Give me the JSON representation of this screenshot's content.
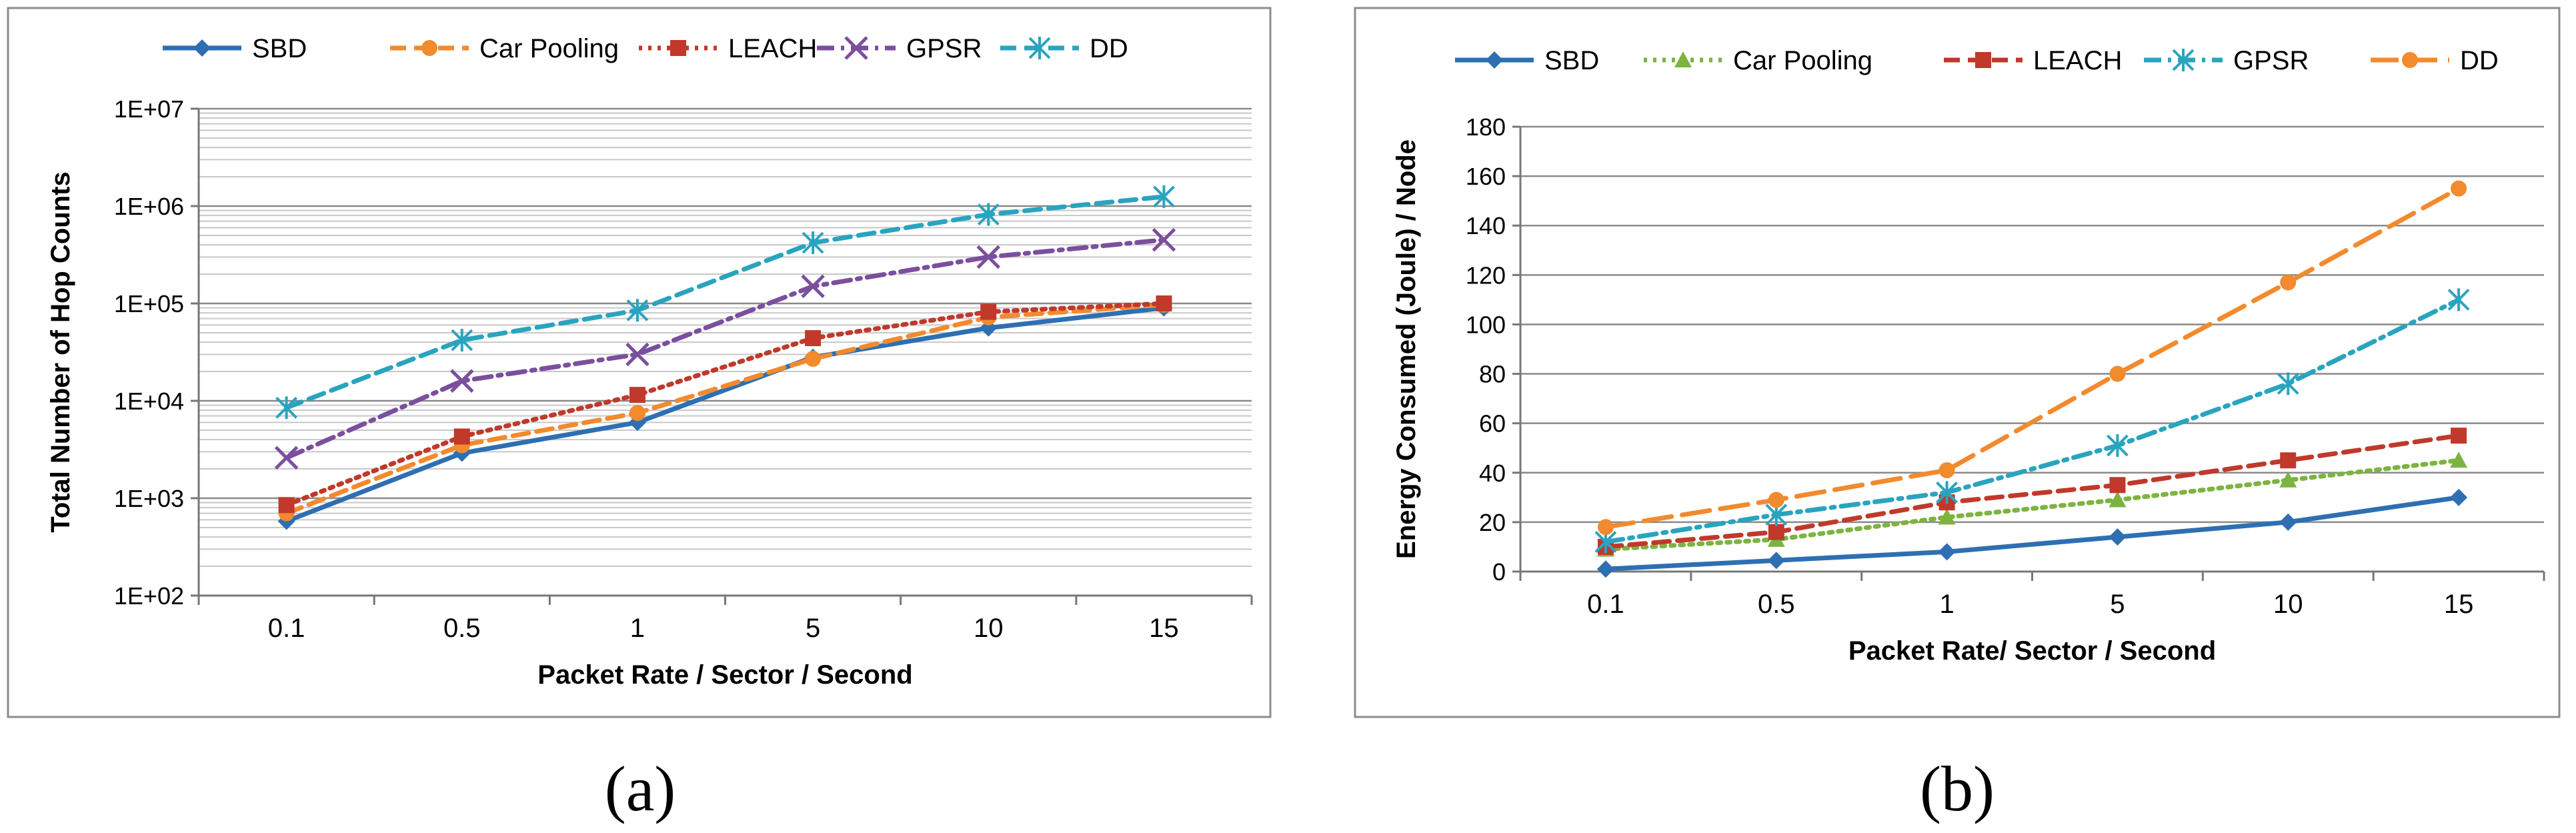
{
  "panels": [
    {
      "label_text": "(a)"
    },
    {
      "label_text": "(b)"
    }
  ],
  "chart_data": [
    {
      "type": "line",
      "xlabel": "Packet Rate / Sector / Second",
      "ylabel": "Total Number of Hop Counts",
      "categories": [
        "0.1",
        "0.5",
        "1",
        "5",
        "10",
        "15"
      ],
      "y_scale": "log",
      "ylim": [
        100,
        10000000
      ],
      "y_ticks": [
        100,
        1000,
        10000,
        100000,
        1000000,
        10000000
      ],
      "y_tick_labels": [
        "1E+02",
        "1E+03",
        "1E+04",
        "1E+05",
        "1E+06",
        "1E+07"
      ],
      "grid": true,
      "minor_grid": true,
      "legend_position": "top",
      "series": [
        {
          "name": "SBD",
          "color": "#2e6fb2",
          "dash": "solid",
          "marker": "diamond",
          "values": [
            580,
            2900,
            6000,
            28000,
            56000,
            90000
          ]
        },
        {
          "name": "Car Pooling",
          "color": "#f28a2e",
          "dash": "dash",
          "marker": "circle",
          "values": [
            700,
            3500,
            7500,
            27000,
            72000,
            97000
          ]
        },
        {
          "name": "LEACH",
          "color": "#c0392b",
          "dash": "dot",
          "marker": "square",
          "values": [
            850,
            4300,
            11500,
            44000,
            82000,
            100000
          ]
        },
        {
          "name": "GPSR",
          "color": "#7b4f9e",
          "dash": "dashdot",
          "marker": "x",
          "values": [
            2600,
            16000,
            30000,
            150000,
            300000,
            450000
          ]
        },
        {
          "name": "DD",
          "color": "#2aa4be",
          "dash": "dash",
          "marker": "star",
          "values": [
            8500,
            42000,
            85000,
            420000,
            820000,
            1250000
          ]
        }
      ]
    },
    {
      "type": "line",
      "xlabel": "Packet Rate/ Sector / Second",
      "ylabel": "Energy Consumed (Joule) / Node",
      "categories": [
        "0.1",
        "0.5",
        "1",
        "5",
        "10",
        "15"
      ],
      "y_scale": "linear",
      "ylim": [
        0,
        180
      ],
      "y_ticks": [
        0,
        20,
        40,
        60,
        80,
        100,
        120,
        140,
        160,
        180
      ],
      "y_tick_labels": [
        "0",
        "20",
        "40",
        "60",
        "80",
        "100",
        "120",
        "140",
        "160",
        "180"
      ],
      "grid": true,
      "legend_position": "top",
      "series": [
        {
          "name": "SBD",
          "color": "#2e6fb2",
          "dash": "solid",
          "marker": "diamond",
          "values": [
            1,
            4.5,
            8,
            14,
            20,
            30
          ]
        },
        {
          "name": "Car Pooling",
          "color": "#7db340",
          "dash": "dot",
          "marker": "triangle",
          "values": [
            9,
            13,
            22,
            29,
            37,
            45
          ]
        },
        {
          "name": "LEACH",
          "color": "#c0392b",
          "dash": "dash",
          "marker": "square",
          "values": [
            10,
            16,
            28,
            35,
            45,
            55
          ]
        },
        {
          "name": "GPSR",
          "color": "#2aa4be",
          "dash": "dashdot",
          "marker": "star",
          "values": [
            12,
            23,
            32,
            51,
            76,
            110
          ]
        },
        {
          "name": "DD",
          "color": "#f28a2e",
          "dash": "longdash",
          "marker": "circle",
          "values": [
            18,
            29,
            41,
            80,
            117,
            155
          ]
        }
      ]
    }
  ]
}
